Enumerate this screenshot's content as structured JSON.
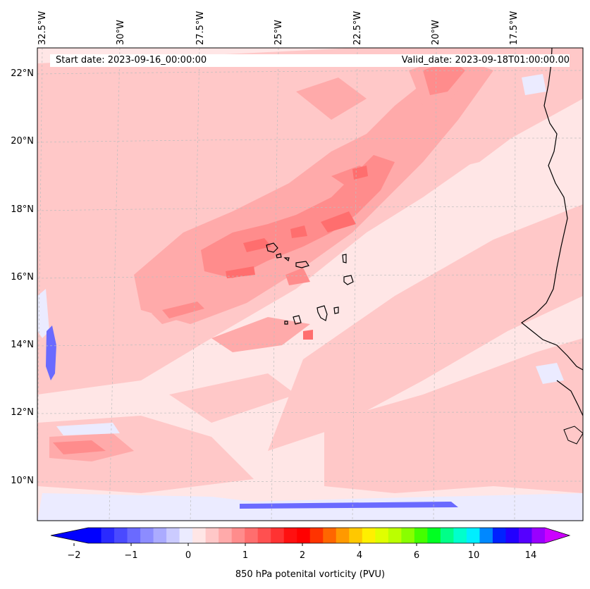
{
  "header": {
    "start_date": "Start date: 2023-09-16_00:00:00",
    "valid_date": "Valid_date: 2023-09-18T01:00:00.00"
  },
  "longitude_labels": [
    "32.5°W",
    "30°W",
    "27.5°W",
    "25°W",
    "22.5°W",
    "20°W",
    "17.5°W"
  ],
  "latitude_labels": [
    "22°N",
    "20°N",
    "18°N",
    "16°N",
    "14°N",
    "12°N",
    "10°N"
  ],
  "colorbar": {
    "label": "850 hPa potenital vorticity (PVU)",
    "tick_labels": [
      "−2",
      "−1",
      "0",
      "1",
      "2",
      "4",
      "6",
      "10",
      "14"
    ],
    "colors": [
      "#0000ff",
      "#2a2aff",
      "#4a4aff",
      "#6a6aff",
      "#8c8cff",
      "#ababff",
      "#cbcbff",
      "#ebebff",
      "#ffe6e6",
      "#ffc8c8",
      "#ffaaaa",
      "#ff8c8c",
      "#ff6e6e",
      "#ff5050",
      "#ff3232",
      "#ff1010",
      "#ff0000",
      "#ff3300",
      "#ff6600",
      "#ff9900",
      "#ffc800",
      "#fff000",
      "#e0ff00",
      "#bbff00",
      "#88ff00",
      "#44ff00",
      "#00ff22",
      "#00ff88",
      "#00ffcc",
      "#00eeff",
      "#0088ff",
      "#0022ff",
      "#2200ff",
      "#5500ff",
      "#9900ff"
    ],
    "under_color": "#0000ff",
    "over_color": "#cc00ff"
  },
  "field": {
    "background": "#ffe6e6",
    "light_pink": "#ffc8c8",
    "medium_pink": "#ffaaaa",
    "salmon": "#ff8c8c",
    "red": "#ff6e6e",
    "light_blue": "#ebebff",
    "blue": "#6a6aff"
  }
}
